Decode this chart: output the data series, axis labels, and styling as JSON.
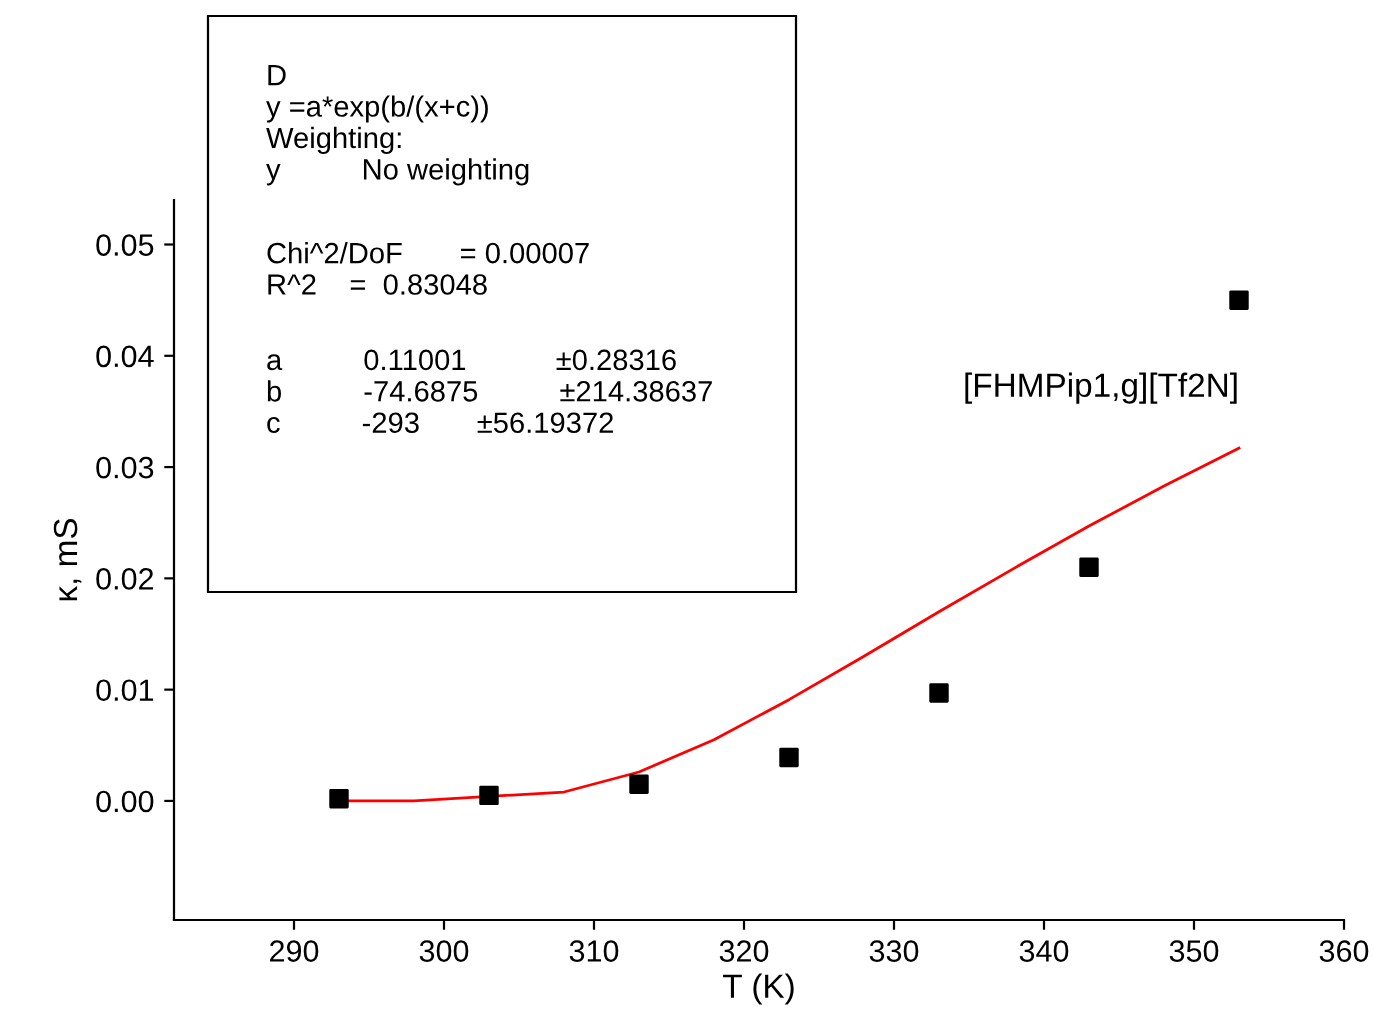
{
  "chart_data": {
    "type": "scatter",
    "xlabel": "T (K)",
    "ylabel": "κ, mS",
    "xlim": [
      282,
      360
    ],
    "xticks": [
      290,
      300,
      310,
      320,
      330,
      340,
      350,
      360
    ],
    "ylim": [
      -0.0107,
      0.054
    ],
    "yticks": [
      {
        "value": 0,
        "label": "0.00"
      },
      {
        "value": 0.01,
        "label": "0.01"
      },
      {
        "value": 0.02,
        "label": "0.02"
      },
      {
        "value": 0.03,
        "label": "0.03"
      },
      {
        "value": 0.04,
        "label": "0.04"
      },
      {
        "value": 0.05,
        "label": "0.05"
      }
    ],
    "grid": false,
    "legend": false,
    "series": [
      {
        "color": "#000000",
        "marker": "square",
        "x": [
          293,
          303,
          313,
          323,
          333,
          343,
          353
        ],
        "values": [
          0.0002,
          0.0005,
          0.0015,
          0.0039,
          0.0097,
          0.021,
          0.045
        ]
      },
      {
        "type": "line",
        "name": "[FHMPip1,g][Tf2N]",
        "color": "#ff0000",
        "marker": "none",
        "line_style": "solid",
        "x": [
          293,
          298,
          308,
          313,
          318,
          323,
          328,
          333,
          338,
          343,
          348,
          353
        ],
        "values": [
          0,
          0,
          0.0008,
          0.0026,
          0.0055,
          0.0091,
          0.013,
          0.017,
          0.0209,
          0.0247,
          0.0283,
          0.0317
        ]
      }
    ],
    "annotations": [
      "D\ny =a*exp(b/(x+c))\nWeighting:\ny          No weighting",
      "Chi^2/DoF       = 0.00007\nR^2    =  0.83048",
      "a          0.11001           ±0.28316\nb          -74.6875          ±214.38637\nc          -293       ±56.19372"
    ]
  }
}
